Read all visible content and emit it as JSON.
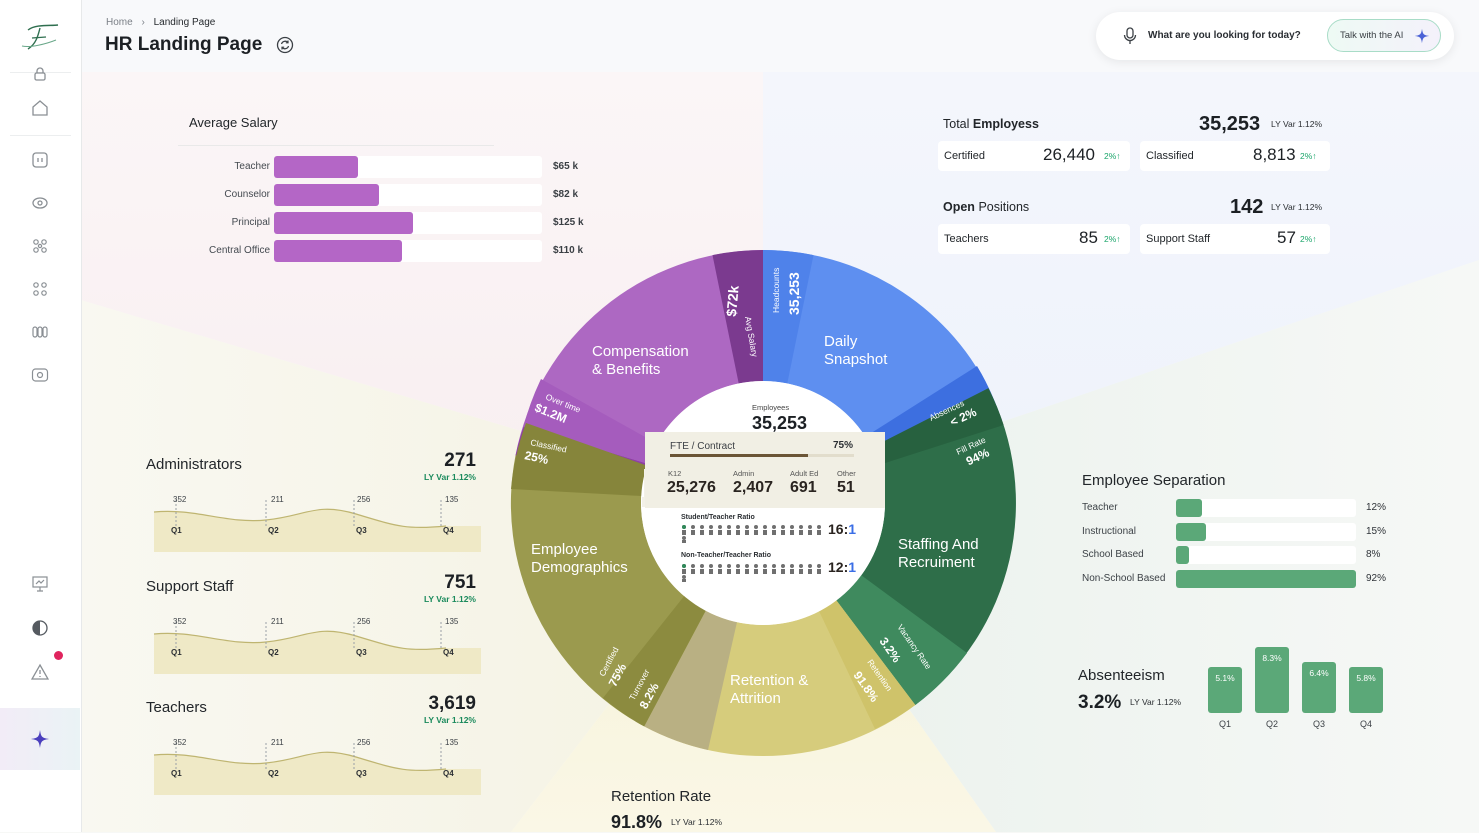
{
  "header": {
    "breadcrumb_home": "Home",
    "breadcrumb_current": "Landing Page",
    "title": "HR Landing Page"
  },
  "search": {
    "question": "What are you looking for today?",
    "ai_button": "Talk with the AI"
  },
  "average_salary": {
    "title": "Average Salary",
    "rows": [
      {
        "label": "Teacher",
        "value": "$65 k",
        "amount": 65
      },
      {
        "label": "Counselor",
        "value": "$82 k",
        "amount": 82
      },
      {
        "label": "Principal",
        "value": "$125 k",
        "amount": 125
      },
      {
        "label": "Central Office",
        "value": "$110 k",
        "amount": 110
      }
    ]
  },
  "total_employees": {
    "label_prefix": "Total",
    "label_bold": "Employess",
    "value": "35,253",
    "var": "LY Var 1.12%",
    "certified_label": "Certified",
    "certified_value": "26,440",
    "certified_pct": "2%↑",
    "classified_label": "Classified",
    "classified_value": "8,813",
    "classified_pct": "2%↑"
  },
  "open_positions": {
    "label_bold": "Open",
    "label_suffix": "Positions",
    "value": "142",
    "var": "LY Var 1.12%",
    "teachers_label": "Teachers",
    "teachers_value": "85",
    "teachers_pct": "2%↑",
    "support_label": "Support Staff",
    "support_value": "57",
    "support_pct": "2%↑"
  },
  "trends": [
    {
      "title": "Administrators",
      "value": "271",
      "var": "LY Var 1.12%",
      "points": [
        "352",
        "211",
        "256",
        "135"
      ],
      "quarters": [
        "Q1",
        "Q2",
        "Q3",
        "Q4"
      ]
    },
    {
      "title": "Support Staff",
      "value": "751",
      "var": "LY Var 1.12%",
      "points": [
        "352",
        "211",
        "256",
        "135"
      ],
      "quarters": [
        "Q1",
        "Q2",
        "Q3",
        "Q4"
      ]
    },
    {
      "title": "Teachers",
      "value": "3,619",
      "var": "LY Var 1.12%",
      "points": [
        "352",
        "211",
        "256",
        "135"
      ],
      "quarters": [
        "Q1",
        "Q2",
        "Q3",
        "Q4"
      ]
    }
  ],
  "employee_separation": {
    "title": "Employee Separation",
    "rows": [
      {
        "label": "Teacher",
        "value": "12%",
        "pct": 12
      },
      {
        "label": "Instructional",
        "value": "15%",
        "pct": 15
      },
      {
        "label": "School Based",
        "value": "8%",
        "pct": 8
      },
      {
        "label": "Non-School Based",
        "value": "92%",
        "pct": 92
      }
    ]
  },
  "absenteeism": {
    "title": "Absenteeism",
    "value": "3.2%",
    "var": "LY Var 1.12%",
    "bars": [
      {
        "q": "Q1",
        "label": "5.1%",
        "value": 5.1
      },
      {
        "q": "Q2",
        "label": "8.3%",
        "value": 8.3
      },
      {
        "q": "Q3",
        "label": "6.4%",
        "value": 6.4
      },
      {
        "q": "Q4",
        "label": "5.8%",
        "value": 5.8
      }
    ]
  },
  "retention_rate": {
    "title": "Retention Rate",
    "value": "91.8%",
    "var": "LY Var 1.12%"
  },
  "ring": {
    "sections": {
      "compensation": "Compensation",
      "compensation2": "& Benefits",
      "daily": "Daily",
      "daily2": "Snapshot",
      "staffing": "Staffing And",
      "staffing2": "Recruiment",
      "retention": "Retention &",
      "retention2": "Attrition",
      "demographics": "Employee",
      "demographics2": "Demographics"
    },
    "metrics": {
      "avg_salary_label": "Avg Salary",
      "avg_salary_value": "$72k",
      "headcounts_label": "Headcounts",
      "headcounts_value": "35,253",
      "absences_label": "Absences",
      "absences_value": "< 2%",
      "fill_rate_label": "Fill Rate",
      "fill_rate_value": "94%",
      "vacancy_label": "Vacancy Rate",
      "vacancy_value": "3.2%",
      "retention_label": "Retention",
      "retention_value": "91.8%",
      "turnover_label": "Turnover",
      "turnover_value": "8.2%",
      "certified_label": "Certified",
      "certified_value": "75%",
      "classified_label": "Classified",
      "classified_value": "25%",
      "overtime_label": "Over time",
      "overtime_value": "$1.2M"
    }
  },
  "center": {
    "employees_label": "Employees",
    "employees_value": "35,253",
    "fte_label": "FTE / Contract",
    "fte_value": "75%",
    "fte_pct": 75,
    "breakdown": [
      {
        "label": "K12",
        "value": "25,276"
      },
      {
        "label": "Admin",
        "value": "2,407"
      },
      {
        "label": "Adult Ed",
        "value": "691"
      },
      {
        "label": "Other",
        "value": "51"
      }
    ],
    "student_ratio_label": "Student/Teacher Ratio",
    "student_ratio_left": "16:",
    "student_ratio_right": "1",
    "nonteacher_ratio_label": "Non-Teacher/Teacher Ratio",
    "nonteacher_ratio_left": "12:",
    "nonteacher_ratio_right": "1"
  }
}
